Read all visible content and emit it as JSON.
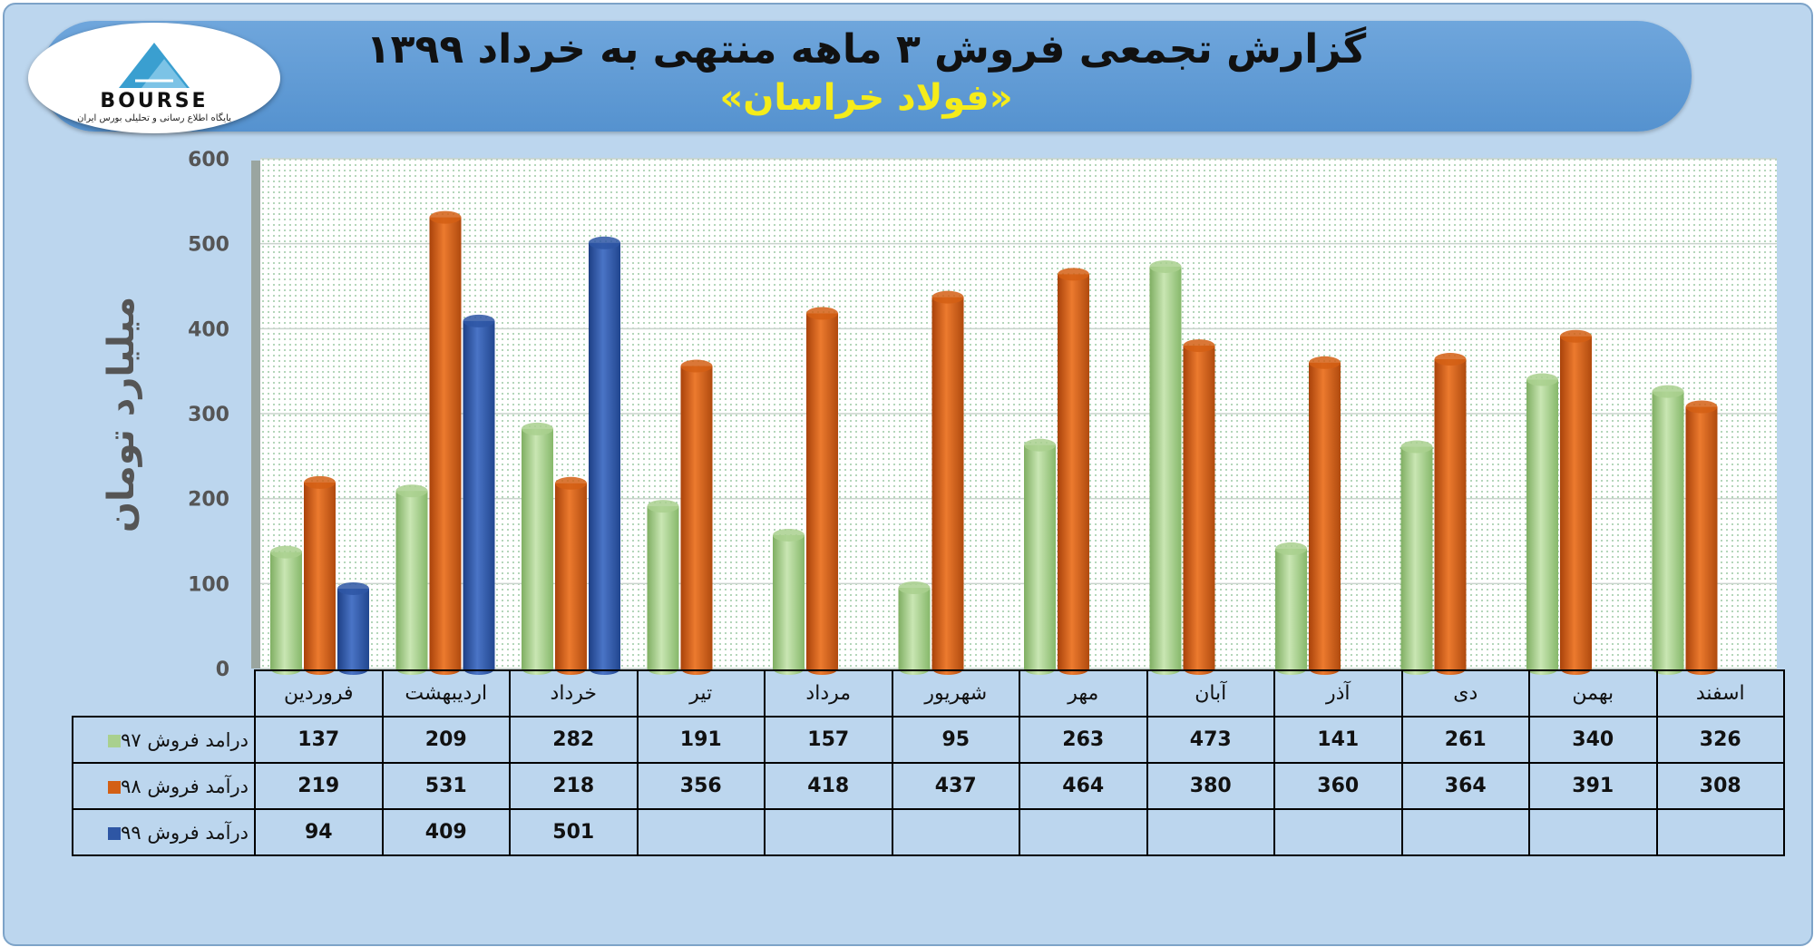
{
  "header": {
    "title": "گزارش تجمعی فروش ۳ ماهه منتهی به خرداد ۱۳۹۹",
    "subtitle": "«فولاد خراسان»"
  },
  "logo": {
    "text": "BOURSE",
    "subtext": "پایگاه اطلاع رسانی و تحلیلی بورس ایران"
  },
  "chart_data": {
    "type": "bar",
    "ylabel": "میلیارد تومان",
    "ylim": [
      0,
      600
    ],
    "yticks": [
      "0",
      "100",
      "200",
      "300",
      "400",
      "500",
      "600"
    ],
    "grid": true,
    "categories": [
      "فروردین",
      "اردیبهشت",
      "خرداد",
      "تیر",
      "مرداد",
      "شهریور",
      "مهر",
      "آبان",
      "آذر",
      "دی",
      "بهمن",
      "اسفند"
    ],
    "series": [
      {
        "name": "درامد فروش ۹۷",
        "color": "#a9d08e",
        "values": [
          137,
          209,
          282,
          191,
          157,
          95,
          263,
          473,
          141,
          261,
          340,
          326
        ]
      },
      {
        "name": "درآمد فروش ۹۸",
        "color": "#d35f14",
        "values": [
          219,
          531,
          218,
          356,
          418,
          437,
          464,
          380,
          360,
          364,
          391,
          308
        ]
      },
      {
        "name": "درآمد فروش ۹۹",
        "color": "#2e56a4",
        "values": [
          94,
          409,
          501,
          null,
          null,
          null,
          null,
          null,
          null,
          null,
          null,
          null
        ]
      }
    ]
  }
}
